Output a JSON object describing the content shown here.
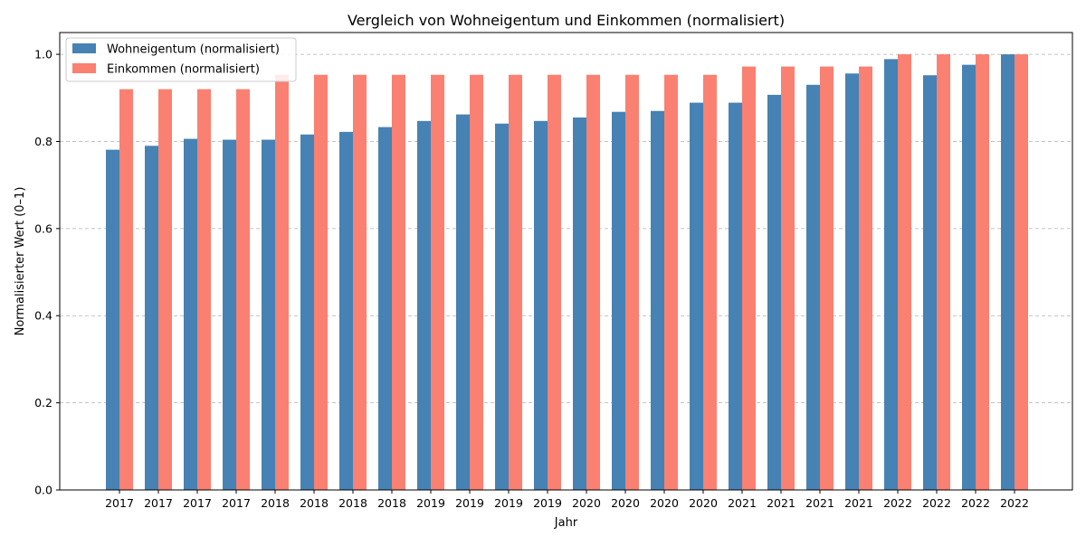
{
  "chart_data": {
    "type": "bar",
    "title": "Vergleich von Wohneigentum und Einkommen (normalisiert)",
    "xlabel": "Jahr",
    "ylabel": "Normalisierter Wert (0–1)",
    "categories": [
      "2017",
      "2017",
      "2017",
      "2017",
      "2018",
      "2018",
      "2018",
      "2018",
      "2019",
      "2019",
      "2019",
      "2019",
      "2020",
      "2020",
      "2020",
      "2020",
      "2021",
      "2021",
      "2021",
      "2021",
      "2022",
      "2022",
      "2022",
      "2022"
    ],
    "series": [
      {
        "name": "Wohneigentum (normalisiert)",
        "color": "#4682b4",
        "values": [
          0.781,
          0.79,
          0.806,
          0.804,
          0.804,
          0.816,
          0.822,
          0.833,
          0.847,
          0.862,
          0.841,
          0.847,
          0.855,
          0.868,
          0.87,
          0.889,
          0.889,
          0.907,
          0.93,
          0.956,
          0.989,
          0.952,
          0.976,
          1.0
        ]
      },
      {
        "name": "Einkommen (normalisiert)",
        "color": "#fa8072",
        "values": [
          0.92,
          0.92,
          0.92,
          0.92,
          0.953,
          0.953,
          0.953,
          0.953,
          0.953,
          0.953,
          0.953,
          0.953,
          0.953,
          0.953,
          0.953,
          0.953,
          0.972,
          0.972,
          0.972,
          0.972,
          1.0,
          1.0,
          1.0,
          1.0
        ]
      }
    ],
    "ylim": [
      0,
      1.05
    ],
    "yticks": [
      "0.0",
      "0.2",
      "0.4",
      "0.6",
      "0.8",
      "1.0"
    ],
    "grid": "y-dashed",
    "legend": "top-left"
  }
}
